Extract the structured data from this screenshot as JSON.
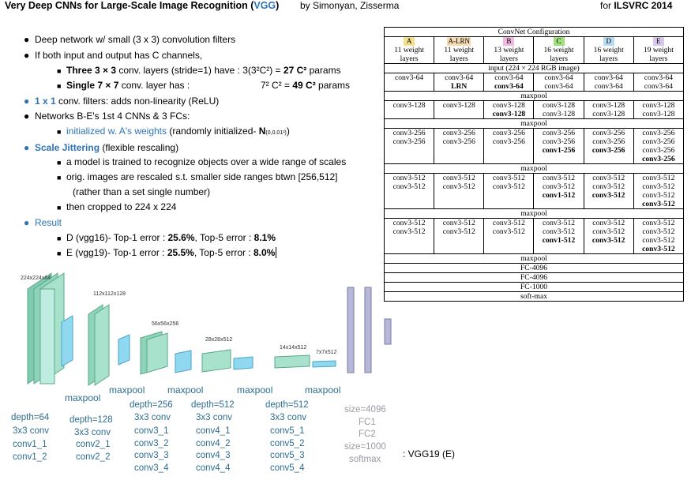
{
  "header": {
    "title_prefix": "Very Deep CNNs for Large-Scale Image Recognition (",
    "title_acronym": "VGG",
    "title_suffix": ")",
    "author": "by Simonyan, Zisserma",
    "venue_prefix": "for ",
    "venue": "ILSVRC 2014"
  },
  "bullets": {
    "b1": "Deep network w/ small (3 x 3) convolution filters",
    "b2": "If both input and output has C channels,",
    "b2a_bold": "Three 3 × 3",
    "b2a_text": " conv. layers (stride=1) have : 3(3²C²) = ",
    "b2a_bold2": "27 C²",
    "b2a_text2": " params",
    "b2b_bold": "Single 7 × 7",
    "b2b_text": " conv. layer has :",
    "b2b_text2": "7² C² = ",
    "b2b_bold2": "49 C²",
    "b2b_text3": " params",
    "b3_blue": "1 x 1",
    "b3_text": " conv. filters: adds non-linearity (ReLU)",
    "b4": "Networks B-E's 1st 4 CNNs & 3 FCs:",
    "b4a_blue": "initialized w. A's weights",
    "b4a_text": " (randomly initialized- ",
    "b4a_bold": "N",
    "b4a_small": "(0,0.01²)",
    "b4a_end": ")",
    "b5_blue": "Scale Jittering",
    "b5_text": " (flexible rescaling)",
    "b5a": "a model is trained to recognize objects over a wide range of scales",
    "b5b": "orig. images are rescaled s.t. smaller side ranges btwn [256,512]",
    "b5b2": "(rather than a set single number)",
    "b5c": "then cropped to 224 x 224",
    "b6": "Result",
    "b6a_text": "D (vgg16)- Top-1 error : ",
    "b6a_v1": "25.6%",
    "b6a_mid": ", Top-5 error : ",
    "b6a_v2": "8.1%",
    "b6b_text": "E (vgg19)- Top-1 error : ",
    "b6b_v1": "25.5%",
    "b6b_mid": ", Top-5 error : ",
    "b6b_v2": "8.0%"
  },
  "table": {
    "title": "ConvNet Configuration",
    "configs": [
      {
        "letter": "A",
        "desc": "11 weight layers",
        "color": "#f5e08a"
      },
      {
        "letter": "A-LRN",
        "desc": "11 weight layers",
        "color": "#f6dcb0"
      },
      {
        "letter": "B",
        "desc": "13 weight layers",
        "color": "#f2b8e0"
      },
      {
        "letter": "C",
        "desc": "16 weight layers",
        "color": "#9fe07a"
      },
      {
        "letter": "D",
        "desc": "16 weight layers",
        "color": "#b7dcf2"
      },
      {
        "letter": "E",
        "desc": "19 weight layers",
        "color": "#d7c7ee"
      }
    ],
    "input": "input (224 × 224 RGB image)",
    "maxpool": "maxpool",
    "fc1": "FC-4096",
    "fc2": "FC-4096",
    "fc3": "FC-1000",
    "softmax": "soft-max"
  },
  "diagram": {
    "caption": ": VGG19 (E)",
    "sizes": [
      "224x224x64",
      "112x112x128",
      "56x56x256",
      "28x28x512",
      "14x14x512",
      "7x7x512"
    ],
    "maxpool": "maxpool",
    "groups": [
      [
        "depth=64",
        "3x3 conv",
        "conv1_1",
        "conv1_2"
      ],
      [
        "depth=128",
        "3x3 conv",
        "conv2_1",
        "conv2_2"
      ],
      [
        "depth=256",
        "3x3 conv",
        "conv3_1",
        "conv3_2",
        "conv3_3",
        "conv3_4"
      ],
      [
        "depth=512",
        "3x3 conv",
        "conv4_1",
        "conv4_2",
        "conv4_3",
        "conv4_4"
      ],
      [
        "depth=512",
        "3x3 conv",
        "conv5_1",
        "conv5_2",
        "conv5_3",
        "conv5_4"
      ],
      [
        "size=4096",
        "FC1",
        "FC2",
        "size=1000",
        "softmax"
      ]
    ]
  }
}
